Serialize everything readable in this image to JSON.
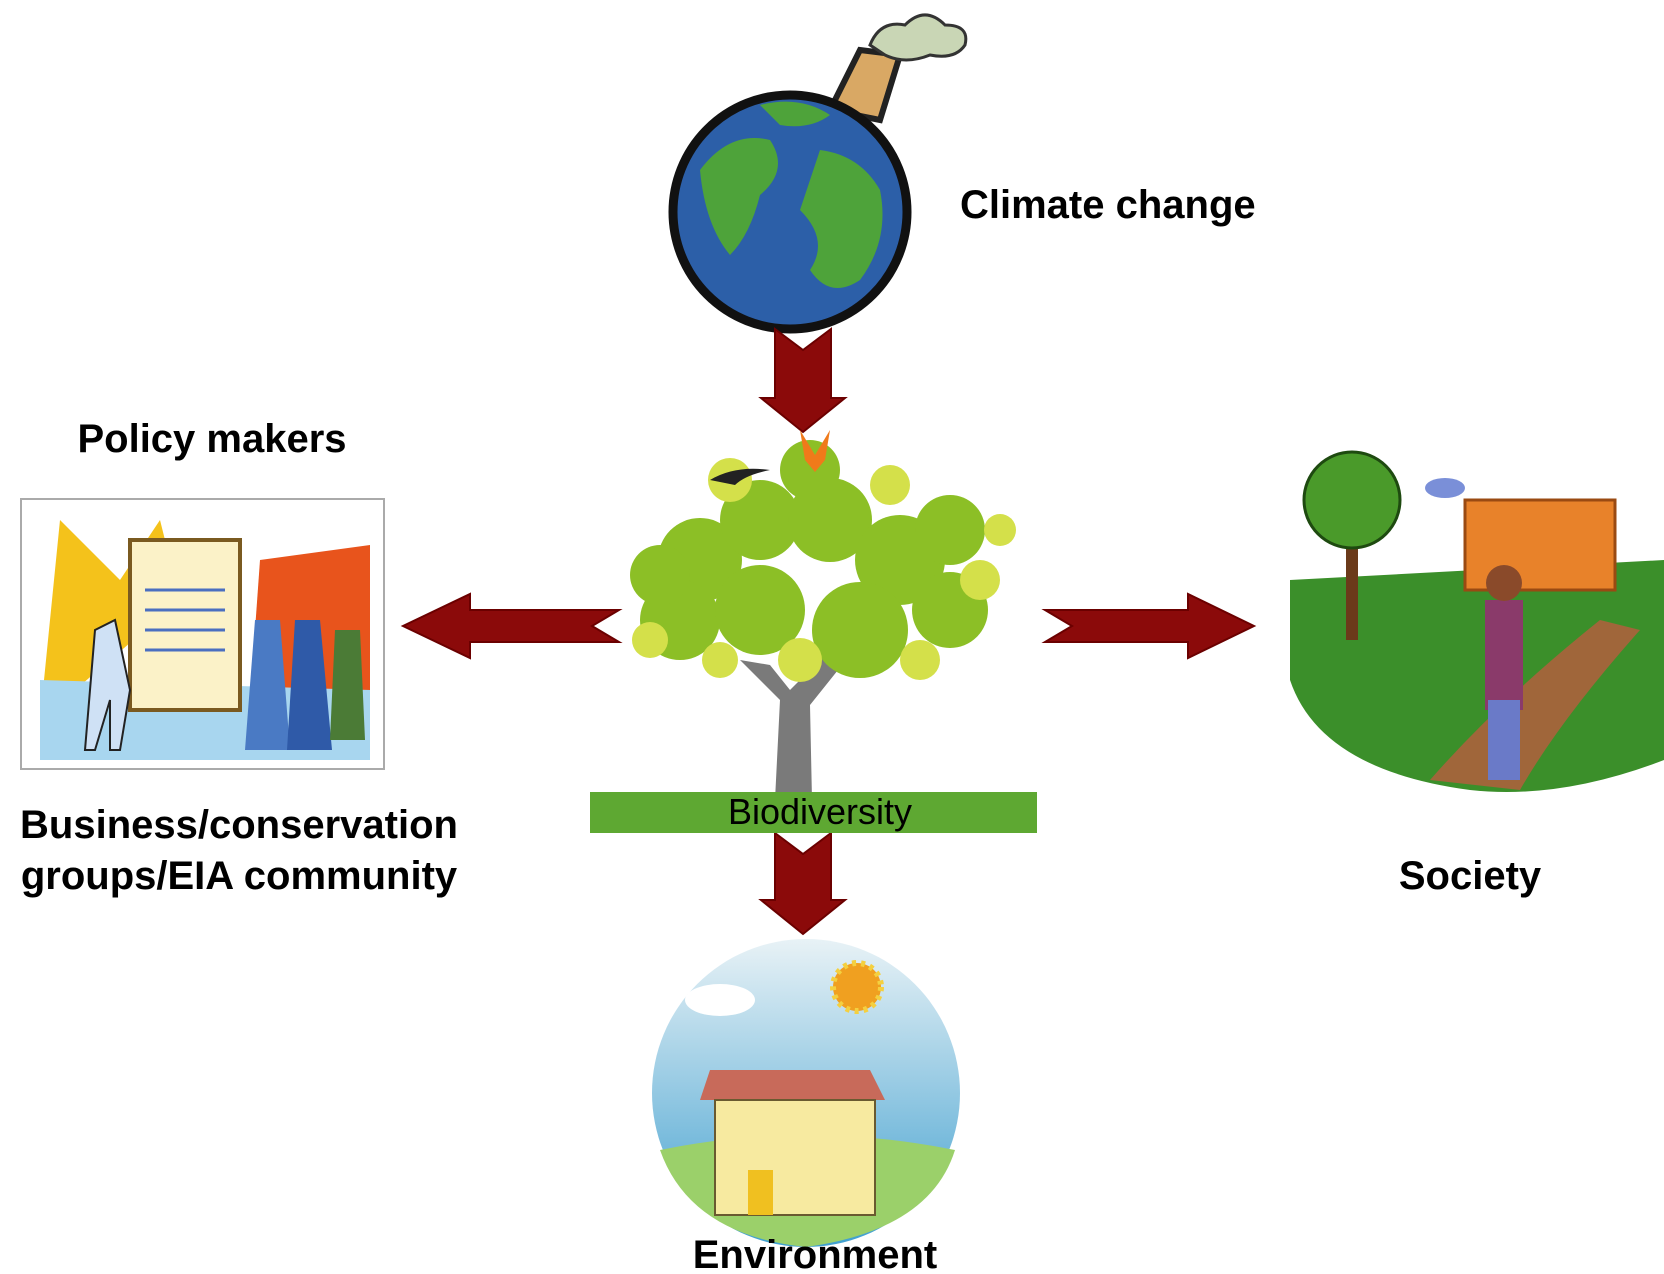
{
  "nodes": [
    {
      "label": "Climate change"
    },
    {
      "label": "Biodiversity"
    },
    {
      "label": "Policy makers",
      "sublabel": [
        "Business/conservation",
        "groups/EIA community"
      ]
    },
    {
      "label": "Society"
    },
    {
      "label": "Environment"
    }
  ]
}
